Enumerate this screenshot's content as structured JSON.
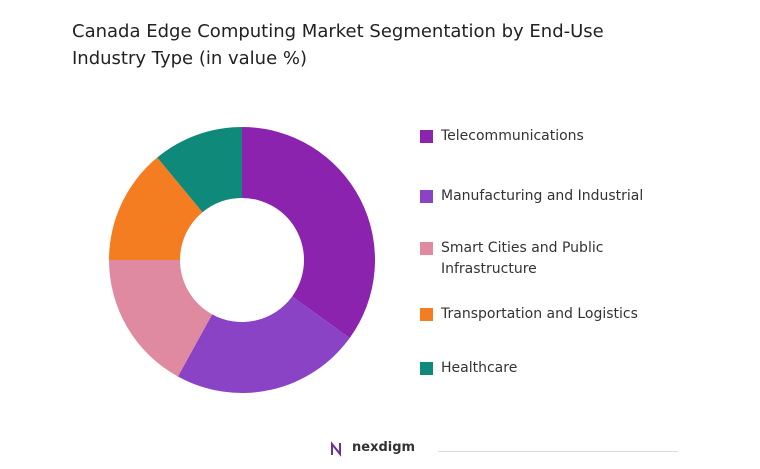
{
  "chart_data": {
    "type": "donut",
    "title": "Canada Edge Computing Market Segmentation by End-Use Industry Type (in value %)",
    "categories": [
      "Telecommunications",
      "Manufacturing and Industrial",
      "Smart Cities and Public Infrastructure",
      "Transportation and Logistics",
      "Healthcare"
    ],
    "values": [
      35,
      23,
      17,
      14,
      11
    ],
    "colors": [
      "#8b23ae",
      "#8b43c6",
      "#e08aa1",
      "#f47d22",
      "#0f8a7a"
    ],
    "legend": "right"
  },
  "logo": "nexdigm"
}
